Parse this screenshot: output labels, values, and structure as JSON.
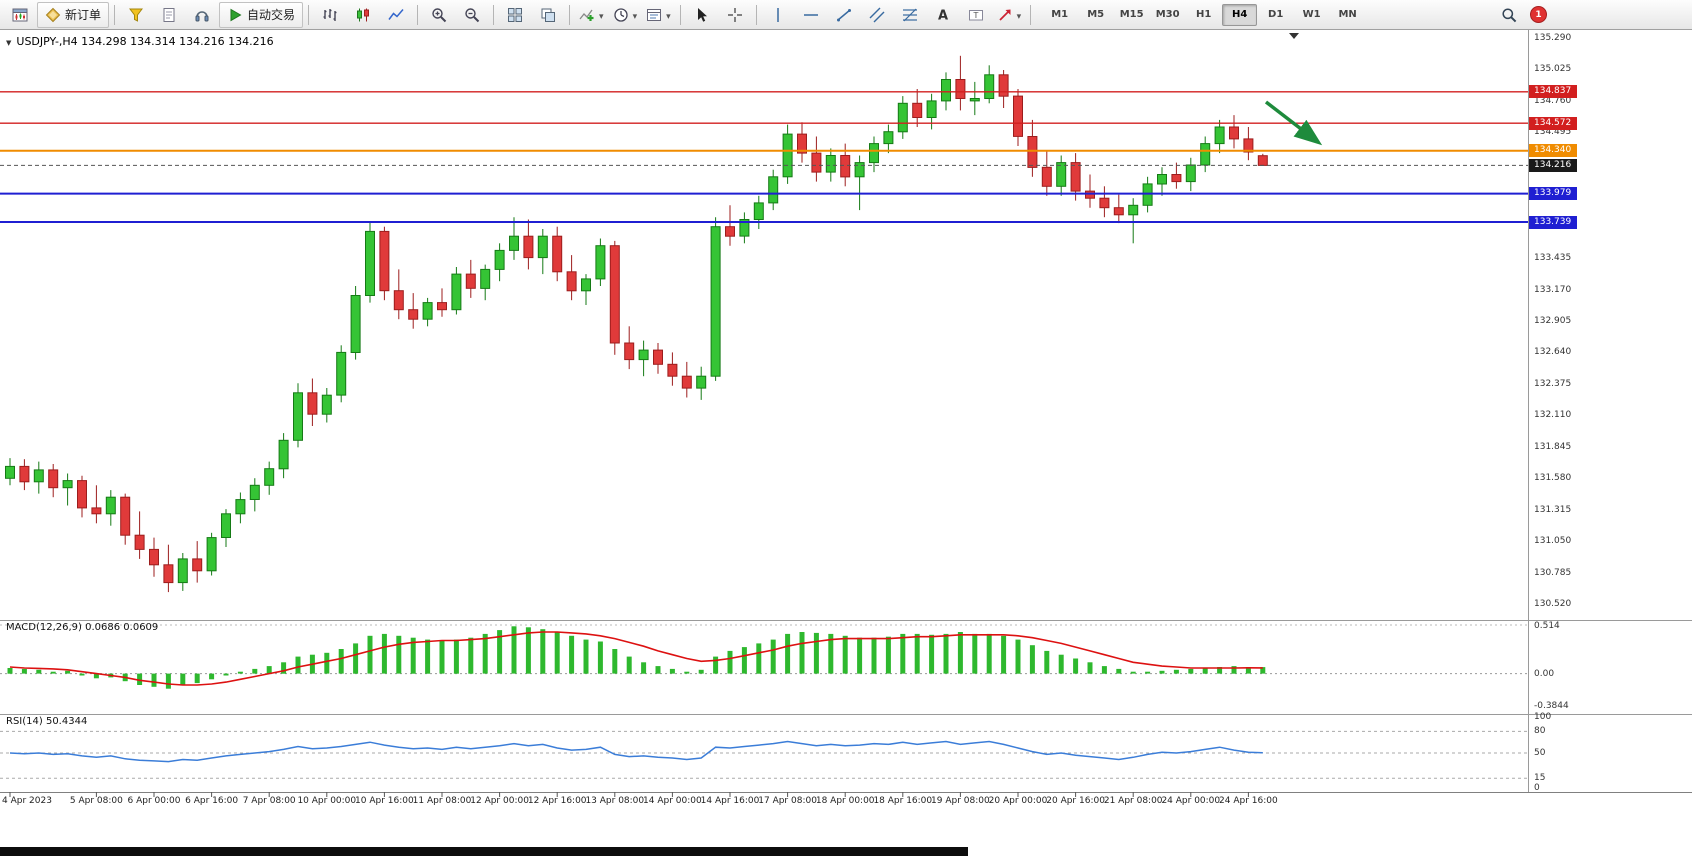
{
  "toolbar": {
    "buttons": [
      {
        "name": "new-chart",
        "icon": "chart-window-icon"
      },
      {
        "name": "new-order",
        "icon": "order-diamond-icon",
        "label": "新订单"
      },
      {
        "sep": true
      },
      {
        "name": "metaeditor",
        "icon": "funnel-icon"
      },
      {
        "name": "market-watch",
        "icon": "document-icon"
      },
      {
        "name": "sound",
        "icon": "headset-icon"
      },
      {
        "name": "autotrade",
        "icon": "play-icon",
        "label": "自动交易"
      },
      {
        "sep": true
      },
      {
        "name": "bar-chart",
        "icon": "bars-icon"
      },
      {
        "name": "candle-chart",
        "icon": "candles-icon"
      },
      {
        "name": "line-chart",
        "icon": "line-icon"
      },
      {
        "sep": true
      },
      {
        "name": "zoom-in",
        "icon": "zoom-in-icon"
      },
      {
        "name": "zoom-out",
        "icon": "zoom-out-icon"
      },
      {
        "sep": true
      },
      {
        "name": "tile-windows",
        "icon": "tile-icon"
      },
      {
        "name": "auto-arrange",
        "icon": "arrange-icon"
      },
      {
        "sep": true
      },
      {
        "name": "indicators",
        "icon": "indicators-icon",
        "caret": true
      },
      {
        "name": "periods",
        "icon": "clock-icon",
        "caret": true
      },
      {
        "name": "templates",
        "icon": "template-icon",
        "caret": true
      },
      {
        "sep": true
      },
      {
        "name": "cursor",
        "icon": "cursor-icon"
      },
      {
        "name": "crosshair",
        "icon": "crosshair-icon"
      },
      {
        "sep": true
      },
      {
        "name": "vertical-line",
        "icon": "vline-icon"
      },
      {
        "name": "horizontal-line",
        "icon": "hline-icon"
      },
      {
        "name": "trendline",
        "icon": "trendline-icon"
      },
      {
        "name": "equidistant-channel",
        "icon": "channel-icon"
      },
      {
        "name": "fibonacci",
        "icon": "fibo-icon"
      },
      {
        "name": "text",
        "icon": "text-icon"
      },
      {
        "name": "text-label",
        "icon": "label-icon"
      },
      {
        "name": "arrows",
        "icon": "arrows-icon",
        "caret": true
      },
      {
        "sep": true
      }
    ],
    "timeframes": [
      "M1",
      "M5",
      "M15",
      "M30",
      "H1",
      "H4",
      "D1",
      "W1",
      "MN"
    ],
    "active_timeframe": "H4",
    "notification_badge": "1"
  },
  "chart": {
    "title": "USDJPY-,H4 134.298 134.314 134.216 134.216"
  },
  "chart_data": {
    "type": "candlestick",
    "symbol": "USDJPY-",
    "timeframe": "H4",
    "quote": {
      "open": "134.298",
      "high": "134.314",
      "low": "134.216",
      "close": "134.216"
    },
    "price_min": 130.52,
    "price_max": 135.29,
    "price_axis": [
      "135.290",
      "135.025",
      "134.760",
      "134.495",
      "134.230",
      "133.965",
      "133.700",
      "133.435",
      "133.170",
      "132.905",
      "132.640",
      "132.375",
      "132.110",
      "131.845",
      "131.580",
      "131.315",
      "131.050",
      "130.785",
      "130.520"
    ],
    "hlines": [
      {
        "price": 134.837,
        "label": "134.837",
        "color": "#d21f1f",
        "width": 1.4
      },
      {
        "price": 134.572,
        "label": "134.572",
        "color": "#d21f1f",
        "width": 1.4
      },
      {
        "price": 134.34,
        "label": "134.340",
        "color": "#f08c00",
        "width": 2
      },
      {
        "price": 134.216,
        "label": "134.216",
        "color": "#555555",
        "width": 1,
        "dash": "4,3",
        "badge": "#1a1a1a"
      },
      {
        "price": 133.979,
        "label": "133.979",
        "color": "#1f1fd2",
        "width": 2
      },
      {
        "price": 133.739,
        "label": "133.739",
        "color": "#1f1fd2",
        "width": 2
      }
    ],
    "candles": [
      [
        131.58,
        131.75,
        131.52,
        131.68
      ],
      [
        131.68,
        131.74,
        131.48,
        131.55
      ],
      [
        131.55,
        131.72,
        131.45,
        131.65
      ],
      [
        131.65,
        131.7,
        131.42,
        131.5
      ],
      [
        131.5,
        131.62,
        131.35,
        131.56
      ],
      [
        131.56,
        131.6,
        131.25,
        131.33
      ],
      [
        131.33,
        131.52,
        131.2,
        131.28
      ],
      [
        131.28,
        131.48,
        131.18,
        131.42
      ],
      [
        131.42,
        131.45,
        131.02,
        131.1
      ],
      [
        131.1,
        131.3,
        130.9,
        130.98
      ],
      [
        130.98,
        131.08,
        130.75,
        130.85
      ],
      [
        130.85,
        131.02,
        130.62,
        130.7
      ],
      [
        130.7,
        130.95,
        130.63,
        130.9
      ],
      [
        130.9,
        131.05,
        130.7,
        130.8
      ],
      [
        130.8,
        131.12,
        130.76,
        131.08
      ],
      [
        131.08,
        131.32,
        131.0,
        131.28
      ],
      [
        131.28,
        131.46,
        131.2,
        131.4
      ],
      [
        131.4,
        131.58,
        131.3,
        131.52
      ],
      [
        131.52,
        131.72,
        131.44,
        131.66
      ],
      [
        131.66,
        131.96,
        131.58,
        131.9
      ],
      [
        131.9,
        132.38,
        131.84,
        132.3
      ],
      [
        132.3,
        132.42,
        132.02,
        132.12
      ],
      [
        132.12,
        132.34,
        132.05,
        132.28
      ],
      [
        132.28,
        132.7,
        132.22,
        132.64
      ],
      [
        132.64,
        133.2,
        132.58,
        133.12
      ],
      [
        133.12,
        133.74,
        133.06,
        133.66
      ],
      [
        133.66,
        133.7,
        133.08,
        133.16
      ],
      [
        133.16,
        133.34,
        132.92,
        133.0
      ],
      [
        133.0,
        133.14,
        132.84,
        132.92
      ],
      [
        132.92,
        133.1,
        132.86,
        133.06
      ],
      [
        133.06,
        133.18,
        132.94,
        133.0
      ],
      [
        133.0,
        133.36,
        132.96,
        133.3
      ],
      [
        133.3,
        133.42,
        133.1,
        133.18
      ],
      [
        133.18,
        133.38,
        133.08,
        133.34
      ],
      [
        133.34,
        133.56,
        133.24,
        133.5
      ],
      [
        133.5,
        133.78,
        133.42,
        133.62
      ],
      [
        133.62,
        133.76,
        133.34,
        133.44
      ],
      [
        133.44,
        133.68,
        133.3,
        133.62
      ],
      [
        133.62,
        133.7,
        133.24,
        133.32
      ],
      [
        133.32,
        133.46,
        133.08,
        133.16
      ],
      [
        133.16,
        133.3,
        133.04,
        133.26
      ],
      [
        133.26,
        133.6,
        133.2,
        133.54
      ],
      [
        133.54,
        133.58,
        132.62,
        132.72
      ],
      [
        132.72,
        132.86,
        132.5,
        132.58
      ],
      [
        132.58,
        132.74,
        132.44,
        132.66
      ],
      [
        132.66,
        132.72,
        132.46,
        132.54
      ],
      [
        132.54,
        132.64,
        132.36,
        132.44
      ],
      [
        132.44,
        132.56,
        132.26,
        132.34
      ],
      [
        132.34,
        132.52,
        132.24,
        132.44
      ],
      [
        132.44,
        133.78,
        132.4,
        133.7
      ],
      [
        133.7,
        133.88,
        133.54,
        133.62
      ],
      [
        133.62,
        133.82,
        133.56,
        133.76
      ],
      [
        133.76,
        133.96,
        133.68,
        133.9
      ],
      [
        133.9,
        134.18,
        133.84,
        134.12
      ],
      [
        134.12,
        134.56,
        134.06,
        134.48
      ],
      [
        134.48,
        134.58,
        134.24,
        134.32
      ],
      [
        134.32,
        134.46,
        134.08,
        134.16
      ],
      [
        134.16,
        134.36,
        134.08,
        134.3
      ],
      [
        134.3,
        134.4,
        134.04,
        134.12
      ],
      [
        134.12,
        134.3,
        133.84,
        134.24
      ],
      [
        134.24,
        134.46,
        134.16,
        134.4
      ],
      [
        134.4,
        134.56,
        134.32,
        134.5
      ],
      [
        134.5,
        134.8,
        134.44,
        134.74
      ],
      [
        134.74,
        134.86,
        134.54,
        134.62
      ],
      [
        134.62,
        134.82,
        134.52,
        134.76
      ],
      [
        134.76,
        135.0,
        134.68,
        134.94
      ],
      [
        134.94,
        135.14,
        134.68,
        134.78
      ],
      [
        134.76,
        134.92,
        134.64,
        134.78
      ],
      [
        134.78,
        135.06,
        134.74,
        134.98
      ],
      [
        134.98,
        135.02,
        134.7,
        134.8
      ],
      [
        134.8,
        134.86,
        134.38,
        134.46
      ],
      [
        134.46,
        134.6,
        134.12,
        134.2
      ],
      [
        134.2,
        134.34,
        133.96,
        134.04
      ],
      [
        134.04,
        134.3,
        133.96,
        134.24
      ],
      [
        134.24,
        134.32,
        133.92,
        134.0
      ],
      [
        134.0,
        134.14,
        133.86,
        133.94
      ],
      [
        133.94,
        134.04,
        133.78,
        133.86
      ],
      [
        133.86,
        133.97,
        133.73,
        133.8
      ],
      [
        133.8,
        133.94,
        133.56,
        133.88
      ],
      [
        133.88,
        134.12,
        133.82,
        134.06
      ],
      [
        134.06,
        134.2,
        133.96,
        134.14
      ],
      [
        134.14,
        134.24,
        134.02,
        134.08
      ],
      [
        134.08,
        134.28,
        134.0,
        134.22
      ],
      [
        134.22,
        134.46,
        134.16,
        134.4
      ],
      [
        134.4,
        134.6,
        134.32,
        134.54
      ],
      [
        134.54,
        134.64,
        134.36,
        134.44
      ],
      [
        134.44,
        134.54,
        134.26,
        134.33
      ],
      [
        134.298,
        134.314,
        134.216,
        134.216
      ]
    ],
    "time_labels": [
      {
        "i": 0,
        "t": "4 Apr 2023"
      },
      {
        "i": 6,
        "t": "5 Apr 08:00"
      },
      {
        "i": 10,
        "t": "6 Apr 00:00"
      },
      {
        "i": 14,
        "t": "6 Apr 16:00"
      },
      {
        "i": 18,
        "t": "7 Apr 08:00"
      },
      {
        "i": 22,
        "t": "10 Apr 00:00"
      },
      {
        "i": 26,
        "t": "10 Apr 16:00"
      },
      {
        "i": 30,
        "t": "11 Apr 08:00"
      },
      {
        "i": 34,
        "t": "12 Apr 00:00"
      },
      {
        "i": 38,
        "t": "12 Apr 16:00"
      },
      {
        "i": 42,
        "t": "13 Apr 08:00"
      },
      {
        "i": 46,
        "t": "14 Apr 00:00"
      },
      {
        "i": 50,
        "t": "14 Apr 16:00"
      },
      {
        "i": 54,
        "t": "17 Apr 08:00"
      },
      {
        "i": 58,
        "t": "18 Apr 00:00"
      },
      {
        "i": 62,
        "t": "18 Apr 16:00"
      },
      {
        "i": 66,
        "t": "19 Apr 08:00"
      },
      {
        "i": 70,
        "t": "20 Apr 00:00"
      },
      {
        "i": 74,
        "t": "20 Apr 16:00"
      },
      {
        "i": 78,
        "t": "21 Apr 08:00"
      },
      {
        "i": 82,
        "t": "24 Apr 00:00"
      },
      {
        "i": 86,
        "t": "24 Apr 16:00"
      }
    ],
    "macd": {
      "label": "MACD(12,26,9) 0.0686 0.0609",
      "axis": [
        "0.514",
        "0.00",
        "-0.3844"
      ],
      "max": 0.514,
      "min": -0.3844,
      "histogram": [
        0.06,
        0.05,
        0.04,
        0.02,
        0.03,
        -0.02,
        -0.05,
        -0.04,
        -0.08,
        -0.12,
        -0.14,
        -0.16,
        -0.12,
        -0.1,
        -0.06,
        -0.02,
        0.02,
        0.05,
        0.08,
        0.12,
        0.18,
        0.2,
        0.22,
        0.26,
        0.32,
        0.4,
        0.42,
        0.4,
        0.38,
        0.36,
        0.35,
        0.36,
        0.38,
        0.42,
        0.46,
        0.5,
        0.49,
        0.47,
        0.44,
        0.4,
        0.36,
        0.34,
        0.26,
        0.18,
        0.12,
        0.08,
        0.05,
        0.02,
        0.04,
        0.18,
        0.24,
        0.28,
        0.32,
        0.36,
        0.42,
        0.44,
        0.43,
        0.42,
        0.4,
        0.38,
        0.38,
        0.39,
        0.42,
        0.42,
        0.41,
        0.42,
        0.44,
        0.42,
        0.42,
        0.4,
        0.36,
        0.3,
        0.24,
        0.2,
        0.16,
        0.12,
        0.08,
        0.05,
        0.02,
        0.02,
        0.03,
        0.04,
        0.05,
        0.06,
        0.07,
        0.08,
        0.07,
        0.0686
      ],
      "signal": [
        0.07,
        0.06,
        0.055,
        0.05,
        0.04,
        0.02,
        0.0,
        -0.02,
        -0.04,
        -0.07,
        -0.09,
        -0.11,
        -0.12,
        -0.12,
        -0.11,
        -0.09,
        -0.06,
        -0.03,
        0.0,
        0.03,
        0.07,
        0.1,
        0.13,
        0.16,
        0.2,
        0.24,
        0.28,
        0.31,
        0.33,
        0.34,
        0.35,
        0.35,
        0.36,
        0.37,
        0.39,
        0.41,
        0.43,
        0.44,
        0.44,
        0.43,
        0.42,
        0.4,
        0.37,
        0.33,
        0.29,
        0.24,
        0.2,
        0.16,
        0.13,
        0.14,
        0.16,
        0.19,
        0.22,
        0.25,
        0.29,
        0.32,
        0.34,
        0.36,
        0.37,
        0.37,
        0.37,
        0.37,
        0.38,
        0.39,
        0.39,
        0.4,
        0.41,
        0.41,
        0.41,
        0.41,
        0.4,
        0.38,
        0.35,
        0.32,
        0.28,
        0.24,
        0.2,
        0.16,
        0.12,
        0.1,
        0.08,
        0.07,
        0.06,
        0.06,
        0.06,
        0.06,
        0.062,
        0.0609
      ]
    },
    "rsi": {
      "label": "RSI(14) 50.4344",
      "axis": [
        "100",
        "80",
        "50",
        "15",
        "0"
      ],
      "levels": [
        80,
        50,
        15
      ],
      "values": [
        50,
        49,
        50,
        48,
        49,
        46,
        44,
        46,
        42,
        40,
        39,
        38,
        41,
        40,
        43,
        46,
        48,
        50,
        52,
        55,
        59,
        56,
        57,
        59,
        62,
        65,
        61,
        58,
        56,
        57,
        55,
        58,
        56,
        58,
        60,
        63,
        60,
        62,
        57,
        54,
        55,
        58,
        48,
        45,
        46,
        44,
        43,
        41,
        43,
        58,
        57,
        59,
        61,
        63,
        66,
        63,
        60,
        62,
        60,
        61,
        63,
        62,
        65,
        62,
        64,
        66,
        62,
        64,
        66,
        62,
        57,
        52,
        48,
        50,
        47,
        45,
        43,
        41,
        44,
        48,
        51,
        50,
        52,
        55,
        58,
        54,
        51,
        50.43
      ]
    },
    "arrow": {
      "color": "#1e8b3c"
    }
  }
}
